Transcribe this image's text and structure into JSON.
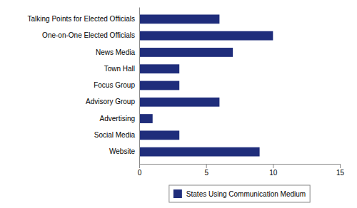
{
  "chart_data": {
    "type": "bar",
    "orientation": "horizontal",
    "categories": [
      "Talking Points for Elected Officials",
      "One-on-One Elected Officials",
      "News Media",
      "Town Hall",
      "Focus Group",
      "Advisory Group",
      "Advertising",
      "Social Media",
      "Website"
    ],
    "series": [
      {
        "name": "States Using Communication Medium",
        "color": "#1f2d7b",
        "values": [
          6,
          10,
          7,
          3,
          3,
          6,
          1,
          3,
          9
        ]
      }
    ],
    "xlim": [
      0,
      15
    ],
    "xticks": [
      0,
      5,
      10,
      15
    ],
    "grid": false,
    "legend": "bottom"
  }
}
